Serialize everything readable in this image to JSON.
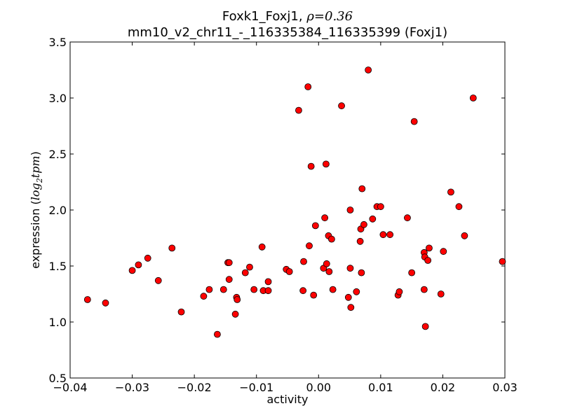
{
  "chart_data": {
    "type": "scatter",
    "title_line1_prefix": "Foxk1_Foxj1, ",
    "title_rho_symbol": "ρ",
    "title_rho_eq": "=0.36",
    "title_line2": "mm10_v2_chr11_-_116335384_116335399 (Foxj1)",
    "xlabel": "activity",
    "ylabel_prefix": "expression (",
    "ylabel_log": "log",
    "ylabel_sub": "2",
    "ylabel_tpm": "tpm",
    "ylabel_suffix": ")",
    "xlim": [
      -0.04,
      0.03
    ],
    "ylim": [
      0.5,
      3.5
    ],
    "xticks": [
      -0.04,
      -0.03,
      -0.02,
      -0.01,
      0.0,
      0.01,
      0.02,
      0.03
    ],
    "xtick_labels": [
      "−0.04",
      "−0.03",
      "−0.02",
      "−0.01",
      "0.00",
      "0.01",
      "0.02",
      "0.03"
    ],
    "yticks": [
      0.5,
      1.0,
      1.5,
      2.0,
      2.5,
      3.0,
      3.5
    ],
    "ytick_labels": [
      "0.5",
      "1.0",
      "1.5",
      "2.0",
      "2.5",
      "3.0",
      "3.5"
    ],
    "marker_color": "#ff0000",
    "marker_edge": "#000000",
    "grid": false,
    "x": [
      -0.0372,
      -0.0343,
      -0.03,
      -0.029,
      -0.0275,
      -0.0258,
      -0.0236,
      -0.0221,
      -0.0185,
      -0.0176,
      -0.0163,
      -0.0153,
      -0.0146,
      -0.0144,
      -0.0144,
      -0.0134,
      -0.0132,
      -0.0131,
      -0.0118,
      -0.0111,
      -0.0104,
      -0.0091,
      -0.0089,
      -0.0081,
      -0.0081,
      -0.0052,
      -0.0047,
      -0.0032,
      -0.0025,
      -0.0024,
      -0.0017,
      -0.0015,
      -0.0012,
      -0.0005,
      -0.0008,
      0.0008,
      0.001,
      0.0012,
      0.0013,
      0.0016,
      0.0017,
      0.0021,
      0.0023,
      0.0037,
      0.0048,
      0.0051,
      0.0051,
      0.0052,
      0.0061,
      0.0067,
      0.0068,
      0.0069,
      0.007,
      0.0073,
      0.008,
      0.0087,
      0.0094,
      0.01,
      0.0104,
      0.0115,
      0.0128,
      0.013,
      0.0143,
      0.015,
      0.0154,
      0.017,
      0.017,
      0.0171,
      0.0172,
      0.0176,
      0.0178,
      0.0197,
      0.0201,
      0.0213,
      0.0226,
      0.0235,
      0.0249,
      0.0296
    ],
    "y": [
      1.2,
      1.17,
      1.46,
      1.51,
      1.57,
      1.37,
      1.66,
      1.09,
      1.23,
      1.29,
      0.89,
      1.29,
      1.53,
      1.53,
      1.38,
      1.07,
      1.22,
      1.2,
      1.44,
      1.49,
      1.29,
      1.67,
      1.28,
      1.36,
      1.28,
      1.47,
      1.45,
      2.89,
      1.28,
      1.54,
      3.1,
      1.68,
      2.39,
      1.86,
      1.24,
      1.48,
      1.93,
      2.41,
      1.52,
      1.77,
      1.45,
      1.74,
      1.29,
      2.93,
      1.22,
      2.0,
      1.48,
      1.13,
      1.27,
      1.72,
      1.83,
      1.44,
      2.19,
      1.87,
      3.25,
      1.92,
      2.03,
      2.03,
      1.78,
      1.78,
      1.24,
      1.27,
      1.93,
      1.44,
      2.79,
      1.29,
      1.62,
      1.58,
      0.96,
      1.55,
      1.66,
      1.25,
      1.63,
      2.16,
      2.03,
      1.77,
      3.0,
      1.54
    ]
  }
}
